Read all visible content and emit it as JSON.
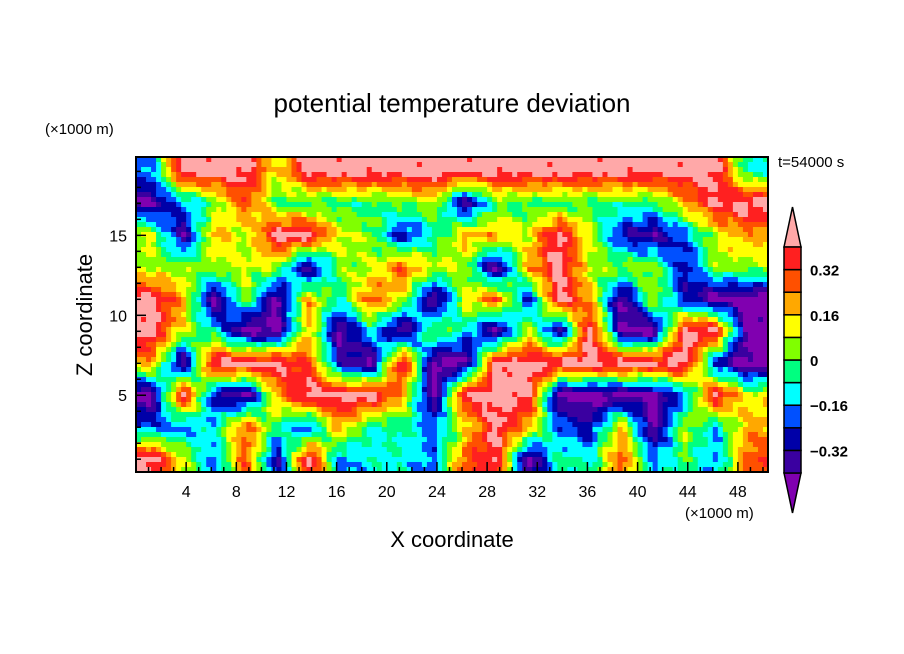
{
  "chart_data": {
    "type": "heatmap",
    "title": "potential temperature deviation",
    "xlabel": "X coordinate",
    "ylabel": "Z coordinate",
    "x_unit": "(×1000 m)",
    "y_unit": "(×1000 m)",
    "time_label": "t=54000 s",
    "xlim": [
      0,
      50.4
    ],
    "ylim": [
      0.2,
      19.9
    ],
    "x_ticks": [
      "4",
      "8",
      "12",
      "16",
      "20",
      "24",
      "28",
      "32",
      "36",
      "40",
      "44",
      "48"
    ],
    "x_tick_values": [
      4,
      8,
      12,
      16,
      20,
      24,
      28,
      32,
      36,
      40,
      44,
      48
    ],
    "y_ticks": [
      "5",
      "10",
      "15"
    ],
    "y_tick_values": [
      5,
      10,
      15
    ],
    "colorbar": {
      "levels": [
        -0.4,
        -0.32,
        -0.24,
        -0.16,
        -0.08,
        0,
        0.08,
        0.16,
        0.24,
        0.32,
        0.4
      ],
      "labels": [
        "0.32",
        "0.16",
        "0",
        "−0.16",
        "−0.32"
      ],
      "label_values": [
        0.32,
        0.16,
        0,
        -0.16,
        -0.32
      ],
      "colors": [
        "#3a00a0",
        "#0000a8",
        "#0050ff",
        "#00ffff",
        "#00ff80",
        "#80ff00",
        "#ffff00",
        "#ffa800",
        "#ff5000",
        "#ff2020"
      ],
      "under_color": "#8000b0",
      "over_color": "#ffa8a8",
      "extend": "both"
    },
    "grid_x": [
      1.25,
      3.75,
      6.25,
      8.75,
      11.25,
      13.75,
      16.25,
      18.75,
      21.25,
      23.75,
      26.25,
      28.75,
      31.25,
      33.75,
      36.25,
      38.75,
      41.25,
      43.75,
      46.25,
      48.75
    ],
    "grid_z": [
      19,
      17,
      15,
      13,
      11,
      9,
      7,
      5,
      3,
      1
    ],
    "values_approx": [
      [
        -0.2,
        0.45,
        0.45,
        0.45,
        0.1,
        0.45,
        0.45,
        0.45,
        0.45,
        0.45,
        0.45,
        0.45,
        0.45,
        0.45,
        0.45,
        0.45,
        0.45,
        0.45,
        0.45,
        -0.1
      ],
      [
        -0.4,
        -0.2,
        0.0,
        0.3,
        -0.02,
        -0.04,
        -0.04,
        -0.04,
        0.0,
        0.1,
        -0.4,
        -0.02,
        -0.04,
        -0.04,
        -0.04,
        -0.04,
        -0.04,
        0.2,
        0.4,
        0.45
      ],
      [
        0.1,
        -0.4,
        0.2,
        0.05,
        0.45,
        0.45,
        0.1,
        0.05,
        -0.3,
        -0.1,
        0.2,
        0.2,
        0.1,
        0.45,
        0.1,
        -0.3,
        -0.4,
        -0.2,
        0.1,
        0.2
      ],
      [
        0.05,
        0.05,
        0.05,
        0.1,
        0.05,
        -0.4,
        0.05,
        0.05,
        0.3,
        0.1,
        0.05,
        -0.45,
        0.2,
        0.45,
        0.05,
        0.05,
        0.05,
        -0.3,
        0.05,
        0.05
      ],
      [
        0.45,
        0.2,
        -0.45,
        0.05,
        -0.45,
        0.2,
        -0.1,
        0.3,
        0.1,
        -0.45,
        0.1,
        0.3,
        -0.3,
        0.45,
        0.2,
        -0.45,
        0.1,
        -0.3,
        -0.45,
        -0.45
      ],
      [
        0.45,
        0.1,
        -0.1,
        -0.45,
        -0.45,
        0.2,
        -0.45,
        -0.1,
        -0.45,
        0.05,
        -0.1,
        -0.45,
        0.1,
        -0.4,
        0.45,
        -0.45,
        -0.45,
        0.45,
        0.45,
        -0.45
      ],
      [
        0.2,
        -0.45,
        0.45,
        0.45,
        0.45,
        0.3,
        -0.3,
        -0.45,
        0.45,
        -0.45,
        -0.45,
        0.45,
        0.45,
        0.45,
        0.45,
        0.45,
        0.45,
        0.45,
        -0.3,
        -0.45
      ],
      [
        -0.45,
        0.45,
        -0.3,
        -0.45,
        0.2,
        0.45,
        0.45,
        0.45,
        0.2,
        -0.45,
        0.45,
        0.45,
        0.45,
        -0.45,
        -0.45,
        -0.45,
        -0.45,
        -0.2,
        0.45,
        0.1
      ],
      [
        -0.2,
        -0.2,
        -0.1,
        0.3,
        -0.05,
        -0.25,
        0.2,
        -0.1,
        -0.05,
        -0.2,
        0.1,
        0.45,
        0.2,
        -0.2,
        -0.3,
        0.2,
        -0.45,
        0.1,
        -0.15,
        0.2
      ],
      [
        0.45,
        0.1,
        -0.2,
        0.3,
        -0.35,
        0.45,
        -0.2,
        -0.1,
        -0.1,
        -0.2,
        0.3,
        0.4,
        -0.45,
        -0.05,
        -0.1,
        0.3,
        -0.2,
        0.0,
        -0.2,
        0.3
      ]
    ]
  }
}
